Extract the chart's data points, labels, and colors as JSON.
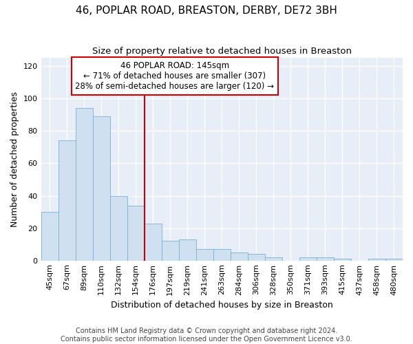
{
  "title": "46, POPLAR ROAD, BREASTON, DERBY, DE72 3BH",
  "subtitle": "Size of property relative to detached houses in Breaston",
  "xlabel": "Distribution of detached houses by size in Breaston",
  "ylabel": "Number of detached properties",
  "bar_color": "#cfe0f0",
  "bar_edge_color": "#7bafd4",
  "categories": [
    "45sqm",
    "67sqm",
    "89sqm",
    "110sqm",
    "132sqm",
    "154sqm",
    "176sqm",
    "197sqm",
    "219sqm",
    "241sqm",
    "263sqm",
    "284sqm",
    "306sqm",
    "328sqm",
    "350sqm",
    "371sqm",
    "393sqm",
    "415sqm",
    "437sqm",
    "458sqm",
    "480sqm"
  ],
  "values": [
    30,
    74,
    94,
    89,
    40,
    34,
    23,
    12,
    13,
    7,
    7,
    5,
    4,
    2,
    0,
    2,
    2,
    1,
    0,
    1,
    1
  ],
  "ylim": [
    0,
    125
  ],
  "yticks": [
    0,
    20,
    40,
    60,
    80,
    100,
    120
  ],
  "vline_x": 5.5,
  "annotation_line1": "46 POPLAR ROAD: 145sqm",
  "annotation_line2": "← 71% of detached houses are smaller (307)",
  "annotation_line3": "28% of semi-detached houses are larger (120) →",
  "annotation_box_color": "#ffffff",
  "annotation_box_edge_color": "#cc0000",
  "footnote": "Contains HM Land Registry data © Crown copyright and database right 2024.\nContains public sector information licensed under the Open Government Licence v3.0.",
  "background_color": "#ffffff",
  "plot_bg_color": "#e8eef8",
  "grid_color": "#ffffff",
  "vline_color": "#cc0000",
  "title_fontsize": 11,
  "subtitle_fontsize": 9.5,
  "axis_label_fontsize": 9,
  "tick_fontsize": 8,
  "annotation_fontsize": 8.5,
  "footnote_fontsize": 7
}
